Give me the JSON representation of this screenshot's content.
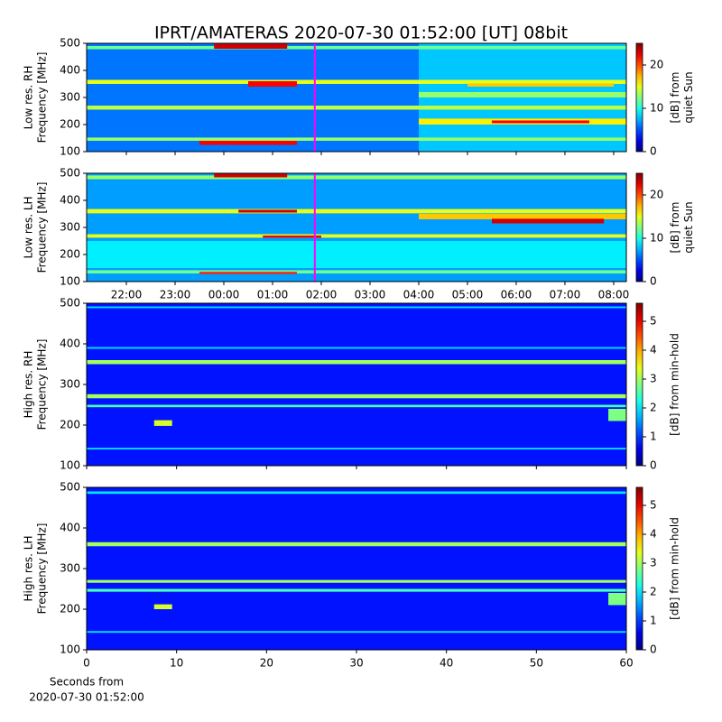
{
  "title": "IPRT/AMATERAS 2020-07-30 01:52:00 [UT]   08bit",
  "chart_data": [
    {
      "type": "spectrogram",
      "ylabel": [
        "Low res. RH",
        "Frequency [MHz]"
      ],
      "colorbar_label": [
        "[dB] from",
        "quiet Sun"
      ],
      "xlim": [
        21.185,
        32.26
      ],
      "xticks": [
        22,
        23,
        24,
        25,
        26,
        27,
        28,
        29,
        30,
        31,
        32
      ],
      "xtick_labels": false,
      "ylim": [
        100,
        500
      ],
      "yticks": [
        100,
        200,
        300,
        400,
        500
      ],
      "clim": [
        0,
        25
      ],
      "cticks": [
        0,
        10,
        20
      ],
      "marker_x": 25.867,
      "marker_color": "#ff00ff",
      "cells": [
        {
          "x": [
            21.185,
            32.26
          ],
          "y": [
            100,
            500
          ],
          "value": 6
        },
        {
          "x": [
            28,
            32.26
          ],
          "y": [
            100,
            500
          ],
          "value": 8
        },
        {
          "x": [
            21.185,
            32.26
          ],
          "y": [
            478,
            490
          ],
          "value": 12
        },
        {
          "x": [
            23.8,
            25.3
          ],
          "y": [
            480,
            498
          ],
          "value": 23
        },
        {
          "x": [
            21.185,
            32.26
          ],
          "y": [
            350,
            365
          ],
          "value": 15
        },
        {
          "x": [
            24.5,
            25.5
          ],
          "y": [
            340,
            360
          ],
          "value": 22
        },
        {
          "x": [
            29,
            32
          ],
          "y": [
            340,
            352
          ],
          "value": 17
        },
        {
          "x": [
            21.185,
            32.26
          ],
          "y": [
            255,
            270
          ],
          "value": 14
        },
        {
          "x": [
            28,
            32.26
          ],
          "y": [
            300,
            320
          ],
          "value": 13
        },
        {
          "x": [
            28,
            32.26
          ],
          "y": [
            200,
            222
          ],
          "value": 16
        },
        {
          "x": [
            29.5,
            31.5
          ],
          "y": [
            205,
            215
          ],
          "value": 22
        },
        {
          "x": [
            21.185,
            32.26
          ],
          "y": [
            140,
            152
          ],
          "value": 13
        },
        {
          "x": [
            23.5,
            25.5
          ],
          "y": [
            125,
            140
          ],
          "value": 22
        }
      ]
    },
    {
      "type": "spectrogram",
      "ylabel": [
        "Low res. LH",
        "Frequency [MHz]"
      ],
      "colorbar_label": [
        "[dB] from",
        "quiet Sun"
      ],
      "xlim": [
        21.185,
        32.26
      ],
      "xticks": [
        {
          "value": 22,
          "label": "22:00"
        },
        {
          "value": 23,
          "label": "23:00"
        },
        {
          "value": 24,
          "label": "00:00"
        },
        {
          "value": 25,
          "label": "01:00"
        },
        {
          "value": 26,
          "label": "02:00"
        },
        {
          "value": 27,
          "label": "03:00"
        },
        {
          "value": 28,
          "label": "04:00"
        },
        {
          "value": 29,
          "label": "05:00"
        },
        {
          "value": 30,
          "label": "06:00"
        },
        {
          "value": 31,
          "label": "07:00"
        },
        {
          "value": 32,
          "label": "08:00"
        }
      ],
      "xtick_labels": true,
      "ylim": [
        100,
        500
      ],
      "yticks": [
        100,
        200,
        300,
        400,
        500
      ],
      "clim": [
        0,
        25
      ],
      "cticks": [
        0,
        10,
        20
      ],
      "marker_x": 25.867,
      "marker_color": "#ff00ff",
      "cells": [
        {
          "x": [
            21.185,
            32.26
          ],
          "y": [
            100,
            500
          ],
          "value": 7
        },
        {
          "x": [
            21.185,
            32.26
          ],
          "y": [
            150,
            250
          ],
          "value": 9
        },
        {
          "x": [
            21.185,
            32.26
          ],
          "y": [
            478,
            492
          ],
          "value": 13
        },
        {
          "x": [
            23.8,
            25.3
          ],
          "y": [
            485,
            498
          ],
          "value": 23
        },
        {
          "x": [
            21.185,
            32.26
          ],
          "y": [
            352,
            368
          ],
          "value": 15
        },
        {
          "x": [
            24.3,
            25.5
          ],
          "y": [
            355,
            365
          ],
          "value": 23
        },
        {
          "x": [
            28,
            32.26
          ],
          "y": [
            330,
            350
          ],
          "value": 17
        },
        {
          "x": [
            29.5,
            31.8
          ],
          "y": [
            315,
            332
          ],
          "value": 23
        },
        {
          "x": [
            21.185,
            32.26
          ],
          "y": [
            262,
            275
          ],
          "value": 15
        },
        {
          "x": [
            24.8,
            26
          ],
          "y": [
            262,
            270
          ],
          "value": 22
        },
        {
          "x": [
            21.185,
            32.26
          ],
          "y": [
            130,
            142
          ],
          "value": 12
        },
        {
          "x": [
            23.5,
            25.5
          ],
          "y": [
            128,
            136
          ],
          "value": 21
        }
      ]
    },
    {
      "type": "spectrogram",
      "ylabel": [
        "High res. RH",
        "Frequency [MHz]"
      ],
      "colorbar_label": [
        "[dB] from min-hold"
      ],
      "xlim": [
        0,
        60
      ],
      "xticks": [
        0,
        10,
        20,
        30,
        40,
        50,
        60
      ],
      "xtick_labels": false,
      "ylim": [
        100,
        500
      ],
      "yticks": [
        100,
        200,
        300,
        400,
        500
      ],
      "clim": [
        0,
        5.625
      ],
      "cticks": [
        0,
        1,
        2,
        3,
        4,
        5
      ],
      "cells": [
        {
          "x": [
            0,
            60
          ],
          "y": [
            100,
            500
          ],
          "value": 0.8
        },
        {
          "x": [
            0,
            60
          ],
          "y": [
            488,
            492
          ],
          "value": 2
        },
        {
          "x": [
            0,
            60
          ],
          "y": [
            388,
            392
          ],
          "value": 2
        },
        {
          "x": [
            0,
            60
          ],
          "y": [
            350,
            360
          ],
          "value": 3
        },
        {
          "x": [
            0,
            60
          ],
          "y": [
            266,
            276
          ],
          "value": 3
        },
        {
          "x": [
            0,
            60
          ],
          "y": [
            244,
            250
          ],
          "value": 2.5
        },
        {
          "x": [
            7.5,
            9.5
          ],
          "y": [
            198,
            212
          ],
          "value": 3.3
        },
        {
          "x": [
            58,
            60
          ],
          "y": [
            210,
            240
          ],
          "value": 2.8
        },
        {
          "x": [
            0,
            60
          ],
          "y": [
            140,
            144
          ],
          "value": 2
        }
      ]
    },
    {
      "type": "spectrogram",
      "ylabel": [
        "High res. LH",
        "Frequency [MHz]"
      ],
      "colorbar_label": [
        "[dB] from min-hold"
      ],
      "xlabel": [
        "Seconds from",
        "2020-07-30 01:52:00"
      ],
      "xlim": [
        0,
        60
      ],
      "xticks": [
        0,
        10,
        20,
        30,
        40,
        50,
        60
      ],
      "xtick_labels": true,
      "ylim": [
        100,
        500
      ],
      "yticks": [
        100,
        200,
        300,
        400,
        500
      ],
      "clim": [
        0,
        5.625
      ],
      "cticks": [
        0,
        1,
        2,
        3,
        4,
        5
      ],
      "cells": [
        {
          "x": [
            0,
            60
          ],
          "y": [
            100,
            500
          ],
          "value": 0.8
        },
        {
          "x": [
            0,
            60
          ],
          "y": [
            484,
            490
          ],
          "value": 2
        },
        {
          "x": [
            0,
            60
          ],
          "y": [
            355,
            365
          ],
          "value": 3
        },
        {
          "x": [
            0,
            60
          ],
          "y": [
            265,
            272
          ],
          "value": 3
        },
        {
          "x": [
            0,
            60
          ],
          "y": [
            243,
            250
          ],
          "value": 2.5
        },
        {
          "x": [
            7.5,
            9.5
          ],
          "y": [
            200,
            212
          ],
          "value": 3.3
        },
        {
          "x": [
            58,
            60
          ],
          "y": [
            210,
            240
          ],
          "value": 2.8
        },
        {
          "x": [
            0,
            60
          ],
          "y": [
            142,
            146
          ],
          "value": 2
        }
      ]
    }
  ]
}
